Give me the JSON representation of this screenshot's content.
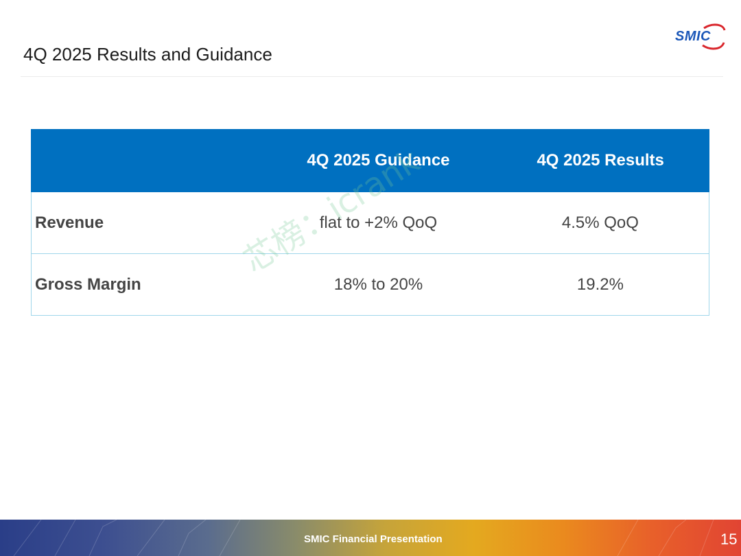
{
  "slide": {
    "title": "4Q 2025 Results and Guidance",
    "logo_text": "SMIC"
  },
  "table": {
    "headers": [
      "",
      "4Q 2025 Guidance",
      "4Q 2025 Results"
    ],
    "rows": [
      {
        "label": "Revenue",
        "guidance": "flat to +2% QoQ",
        "results": "4.5% QoQ"
      },
      {
        "label": "Gross Margin",
        "guidance": "18% to 20%",
        "results": "19.2%"
      }
    ]
  },
  "watermark": "芯榜：icrank",
  "footer": {
    "text": "SMIC Financial Presentation",
    "page_number": "15"
  },
  "colors": {
    "header_blue": "#0070c0",
    "border_light_blue": "#9fd6ea",
    "logo_blue": "#1b57b8",
    "logo_red": "#d9262c"
  }
}
